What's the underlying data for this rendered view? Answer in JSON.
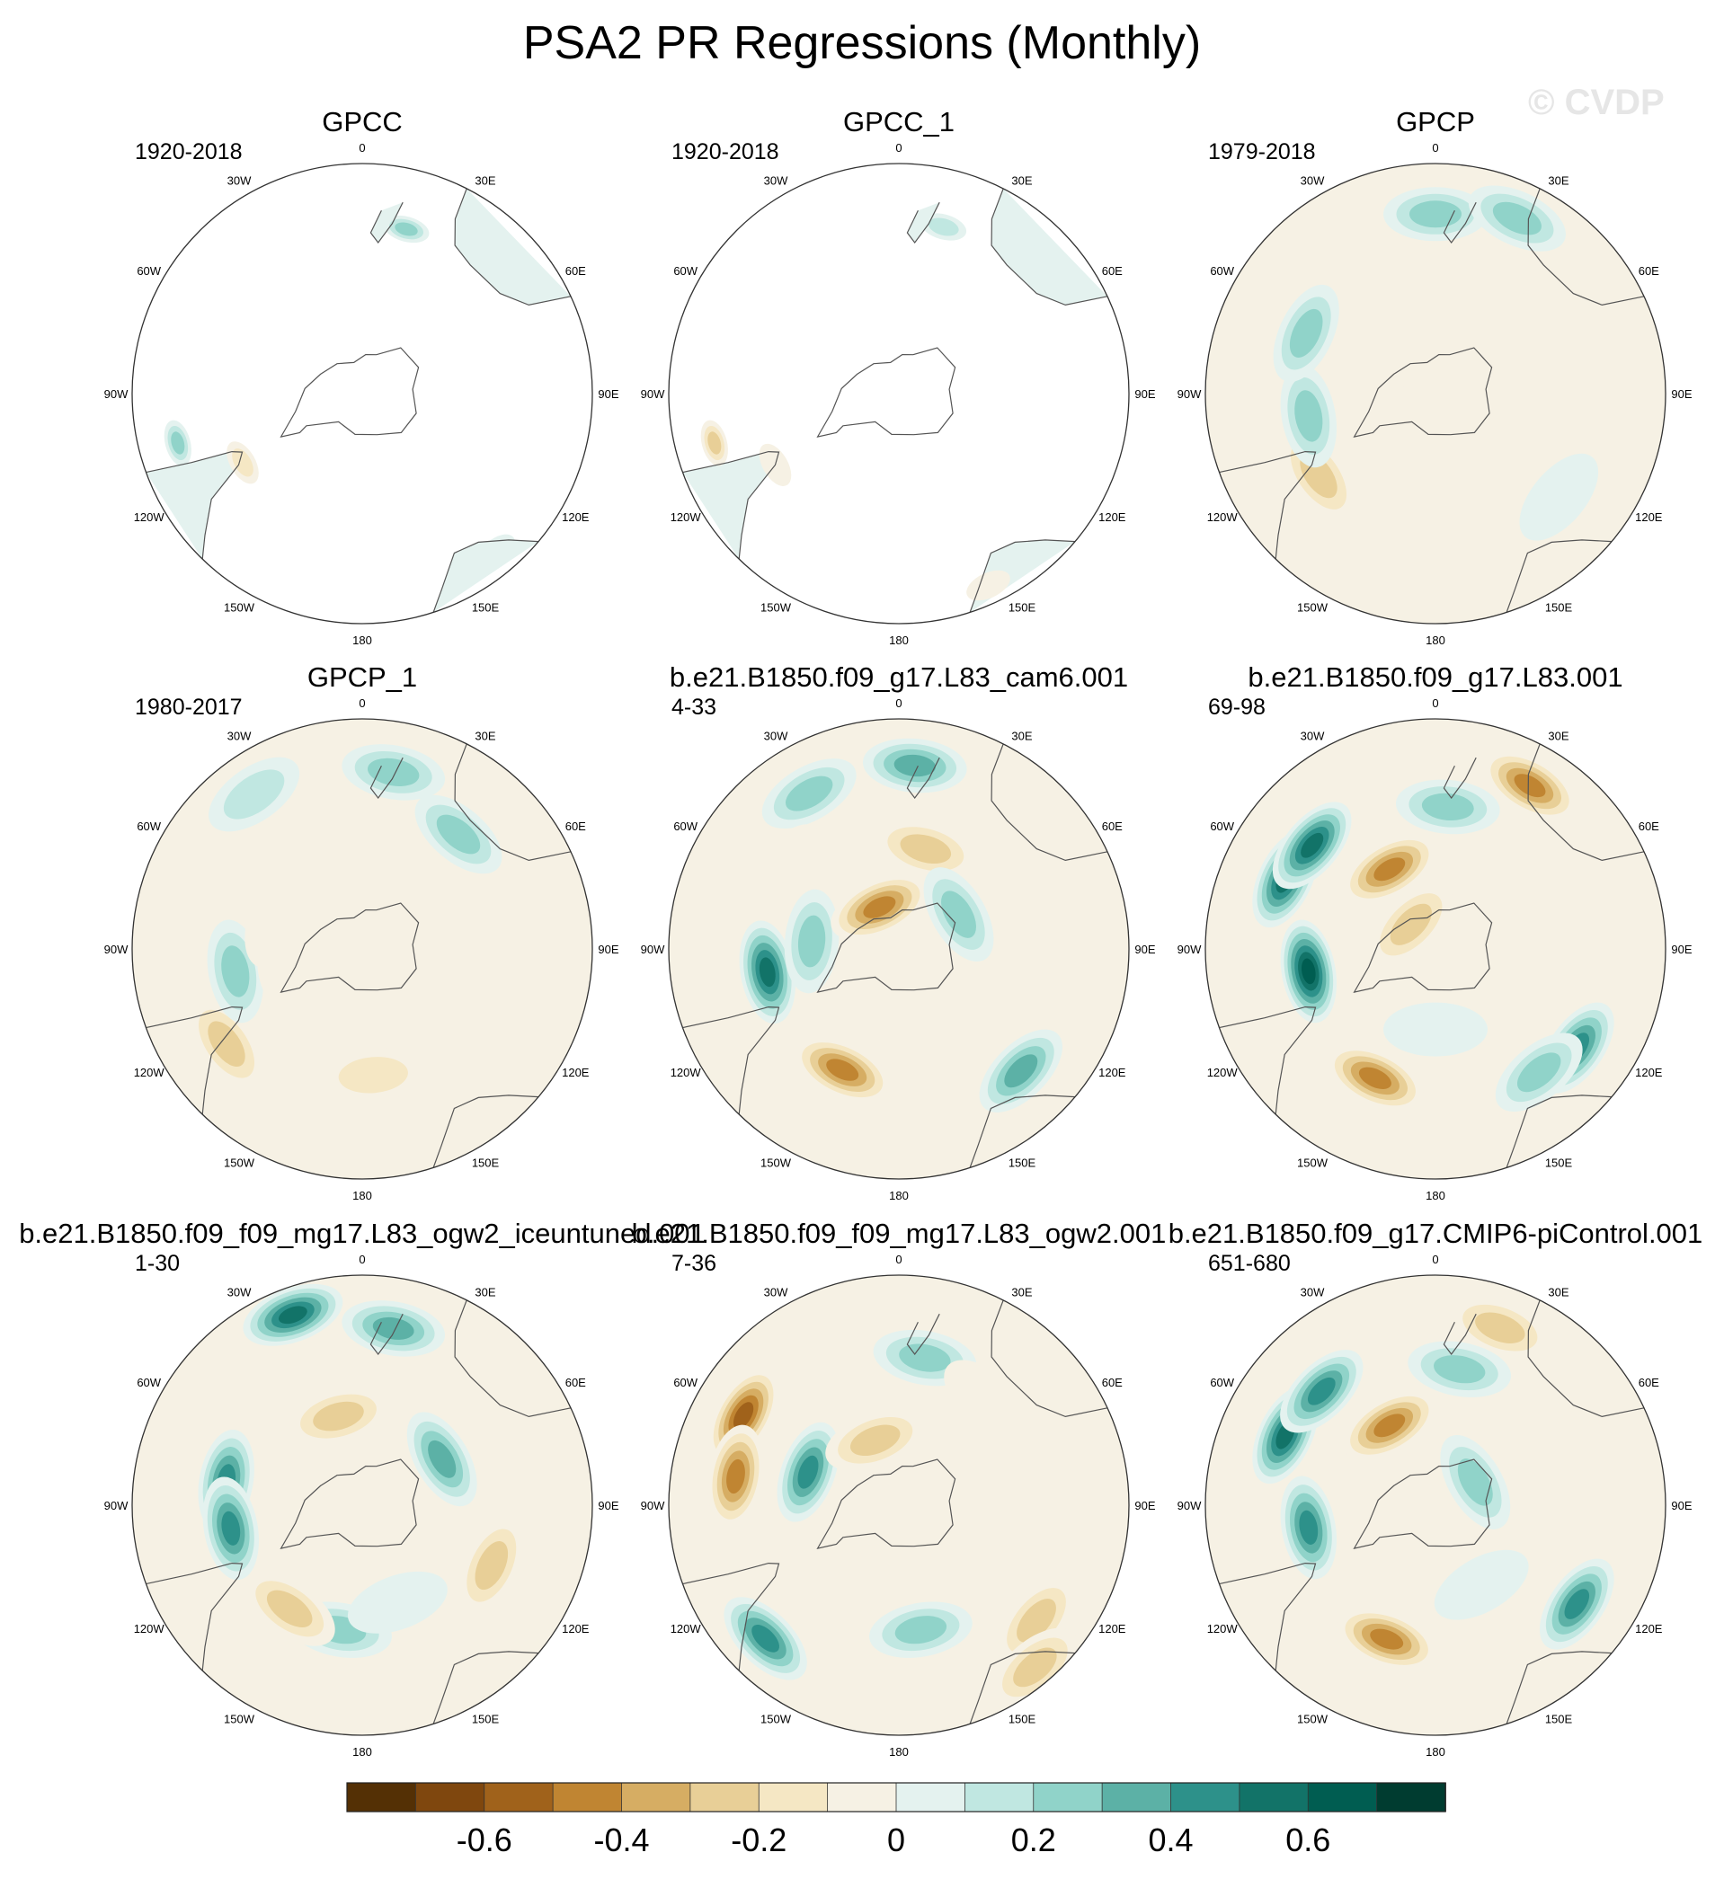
{
  "figure": {
    "title": "PSA2 PR Regressions (Monthly)",
    "watermark": "© CVDP"
  },
  "chart_data": {
    "type": "heatmap",
    "projection": "south-polar-stereographic",
    "longitude_labels": [
      "0",
      "30E",
      "60E",
      "90E",
      "120E",
      "150E",
      "180",
      "150W",
      "120W",
      "90W",
      "60W",
      "30W"
    ],
    "panels": [
      {
        "name": "GPCC",
        "period": "1920-2018",
        "coverage": "land-only",
        "features": [
          {
            "lon": -60,
            "r": 0.6,
            "v": -0.2
          },
          {
            "lon": -75,
            "r": 0.83,
            "v": 0.25
          },
          {
            "lon": 40,
            "r": 0.9,
            "v": 0.05
          },
          {
            "lon": 140,
            "r": 0.82,
            "v": 0.05
          },
          {
            "lon": 165,
            "r": 0.74,
            "v": 0.3
          }
        ]
      },
      {
        "name": "GPCC_1",
        "period": "1920-2018",
        "coverage": "land-only",
        "features": [
          {
            "lon": -60,
            "r": 0.62,
            "v": -0.15
          },
          {
            "lon": -75,
            "r": 0.83,
            "v": -0.25
          },
          {
            "lon": 25,
            "r": 0.92,
            "v": -0.08
          },
          {
            "lon": 140,
            "r": 0.82,
            "v": 0.05
          },
          {
            "lon": 165,
            "r": 0.75,
            "v": 0.2
          }
        ]
      },
      {
        "name": "GPCP",
        "period": "1979-2018",
        "coverage": "global",
        "features": [
          {
            "lon": -55,
            "r": 0.62,
            "v": -0.3
          },
          {
            "lon": -80,
            "r": 0.56,
            "v": 0.3
          },
          {
            "lon": 10,
            "r": 0.55,
            "v": -0.15
          },
          {
            "lon": 180,
            "r": 0.78,
            "v": 0.25
          },
          {
            "lon": 155,
            "r": 0.84,
            "v": 0.3
          },
          {
            "lon": -115,
            "r": 0.62,
            "v": 0.25
          },
          {
            "lon": 100,
            "r": 0.4,
            "v": -0.15
          },
          {
            "lon": -120,
            "r": 0.25,
            "v": -0.12
          },
          {
            "lon": 50,
            "r": 0.7,
            "v": 0.15
          }
        ]
      },
      {
        "name": "GPCP_1",
        "period": "1980-2017",
        "coverage": "global",
        "features": [
          {
            "lon": -55,
            "r": 0.72,
            "v": -0.3
          },
          {
            "lon": -80,
            "r": 0.56,
            "v": 0.25
          },
          {
            "lon": 5,
            "r": 0.55,
            "v": -0.18
          },
          {
            "lon": 170,
            "r": 0.78,
            "v": 0.28
          },
          {
            "lon": -145,
            "r": 0.82,
            "v": 0.22
          },
          {
            "lon": 140,
            "r": 0.65,
            "v": 0.25
          },
          {
            "lon": -110,
            "r": 0.4,
            "v": -0.12
          },
          {
            "lon": -60,
            "r": 0.35,
            "v": -0.1
          }
        ]
      },
      {
        "name": "b.e21.B1850.f09_g17.L83_cam6.001",
        "period": "4-33",
        "coverage": "global",
        "features": [
          {
            "lon": -25,
            "r": 0.58,
            "v": -0.5
          },
          {
            "lon": -80,
            "r": 0.58,
            "v": 0.6
          },
          {
            "lon": -95,
            "r": 0.38,
            "v": 0.35
          },
          {
            "lon": 45,
            "r": 0.75,
            "v": 0.4
          },
          {
            "lon": -155,
            "r": 0.2,
            "v": -0.45
          },
          {
            "lon": 165,
            "r": 0.45,
            "v": -0.3
          },
          {
            "lon": 175,
            "r": 0.8,
            "v": 0.4
          },
          {
            "lon": -150,
            "r": 0.78,
            "v": 0.35
          },
          {
            "lon": 120,
            "r": 0.3,
            "v": 0.35
          },
          {
            "lon": 90,
            "r": 0.55,
            "v": -0.15
          },
          {
            "lon": -125,
            "r": 0.6,
            "v": -0.15
          }
        ]
      },
      {
        "name": "b.e21.B1850.f09_g17.L83.001",
        "period": "69-98",
        "coverage": "global",
        "features": [
          {
            "lon": -25,
            "r": 0.62,
            "v": -0.45
          },
          {
            "lon": -80,
            "r": 0.56,
            "v": 0.65
          },
          {
            "lon": -115,
            "r": 0.72,
            "v": 0.6
          },
          {
            "lon": -130,
            "r": 0.7,
            "v": 0.55
          },
          {
            "lon": 55,
            "r": 0.75,
            "v": 0.45
          },
          {
            "lon": 40,
            "r": 0.7,
            "v": 0.35
          },
          {
            "lon": -150,
            "r": 0.4,
            "v": -0.45
          },
          {
            "lon": 150,
            "r": 0.82,
            "v": -0.45
          },
          {
            "lon": 175,
            "r": 0.62,
            "v": 0.35
          },
          {
            "lon": 0,
            "r": 0.35,
            "v": 0.15
          },
          {
            "lon": -135,
            "r": 0.15,
            "v": -0.25
          }
        ]
      },
      {
        "name": "b.e21.B1850.f09_f09_mg17.L83_ogw2_iceuntuned.001",
        "period": "1-30",
        "coverage": "global",
        "features": [
          {
            "lon": -100,
            "r": 0.6,
            "v": 0.45
          },
          {
            "lon": -80,
            "r": 0.58,
            "v": 0.5
          },
          {
            "lon": 65,
            "r": 0.62,
            "v": -0.35
          },
          {
            "lon": -160,
            "r": 0.88,
            "v": 0.55
          },
          {
            "lon": 170,
            "r": 0.78,
            "v": 0.4
          },
          {
            "lon": 120,
            "r": 0.4,
            "v": 0.4
          },
          {
            "lon": -10,
            "r": 0.55,
            "v": 0.25
          },
          {
            "lon": -35,
            "r": 0.55,
            "v": -0.25
          },
          {
            "lon": -165,
            "r": 0.4,
            "v": -0.25
          },
          {
            "lon": 20,
            "r": 0.45,
            "v": 0.15
          }
        ]
      },
      {
        "name": "b.e21.B1850.f09_f09_mg17.L83_ogw2.001",
        "period": "7-36",
        "coverage": "global",
        "features": [
          {
            "lon": -120,
            "r": 0.78,
            "v": -0.55
          },
          {
            "lon": -100,
            "r": 0.72,
            "v": -0.45
          },
          {
            "lon": -110,
            "r": 0.42,
            "v": 0.45
          },
          {
            "lon": -45,
            "r": 0.82,
            "v": 0.45
          },
          {
            "lon": 10,
            "r": 0.55,
            "v": 0.3
          },
          {
            "lon": 50,
            "r": 0.78,
            "v": -0.35
          },
          {
            "lon": 40,
            "r": 0.92,
            "v": -0.3
          },
          {
            "lon": -160,
            "r": 0.3,
            "v": -0.35
          },
          {
            "lon": 170,
            "r": 0.65,
            "v": 0.35
          },
          {
            "lon": 140,
            "r": 0.6,
            "v": -0.12
          }
        ]
      },
      {
        "name": "b.e21.B1850.f09_g17.CMIP6-piControl.001",
        "period": "651-680",
        "coverage": "global",
        "features": [
          {
            "lon": -20,
            "r": 0.62,
            "v": -0.45
          },
          {
            "lon": -115,
            "r": 0.72,
            "v": 0.6
          },
          {
            "lon": -135,
            "r": 0.7,
            "v": 0.5
          },
          {
            "lon": 55,
            "r": 0.75,
            "v": 0.5
          },
          {
            "lon": -80,
            "r": 0.56,
            "v": 0.45
          },
          {
            "lon": -150,
            "r": 0.4,
            "v": -0.45
          },
          {
            "lon": 120,
            "r": 0.2,
            "v": 0.35
          },
          {
            "lon": 160,
            "r": 0.82,
            "v": -0.35
          },
          {
            "lon": 170,
            "r": 0.6,
            "v": 0.25
          },
          {
            "lon": 30,
            "r": 0.4,
            "v": 0.15
          }
        ]
      }
    ],
    "colorbar": {
      "levels": [
        -0.7,
        -0.6,
        -0.5,
        -0.4,
        -0.3,
        -0.2,
        -0.1,
        0,
        0.1,
        0.2,
        0.3,
        0.4,
        0.5,
        0.6,
        0.7
      ],
      "colors": [
        "#543005",
        "#7f470e",
        "#a0621b",
        "#c08532",
        "#d6ad63",
        "#e8cf97",
        "#f5e7c4",
        "#f6f1e4",
        "#e4f2ef",
        "#c0e7e1",
        "#90d3c9",
        "#5cb1a6",
        "#2d918a",
        "#127368",
        "#005d51",
        "#003c30"
      ],
      "tick_labels": [
        "-0.6",
        "-0.4",
        "-0.2",
        "0",
        "0.2",
        "0.4",
        "0.6"
      ],
      "tick_values": [
        -0.6,
        -0.4,
        -0.2,
        0,
        0.2,
        0.4,
        0.6
      ]
    }
  }
}
